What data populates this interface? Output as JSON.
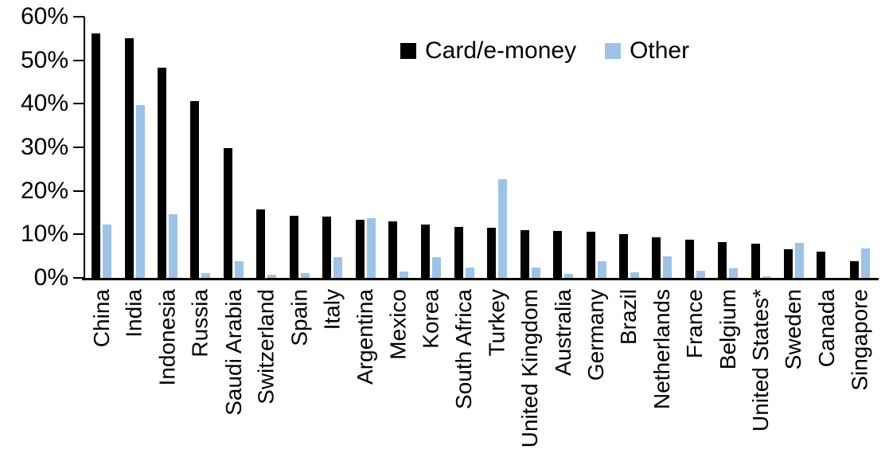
{
  "chart_data": {
    "type": "bar",
    "title": "",
    "xlabel": "",
    "ylabel": "",
    "ylim": [
      0,
      60
    ],
    "yticks": [
      0,
      10,
      20,
      30,
      40,
      50,
      60
    ],
    "ytick_suffix": "%",
    "grid": false,
    "legend_position": "top",
    "categories": [
      "China",
      "India",
      "Indonesia",
      "Russia",
      "Saudi Arabia",
      "Switzerland",
      "Spain",
      "Italy",
      "Argentina",
      "Mexico",
      "Korea",
      "South Africa",
      "Turkey",
      "United Kingdom",
      "Australia",
      "Germany",
      "Brazil",
      "Netherlands",
      "France",
      "Belgium",
      "United States*",
      "Sweden",
      "Canada",
      "Singapore"
    ],
    "series": [
      {
        "name": "Card/e-money",
        "color": "#000000",
        "values": [
          56.2,
          55.0,
          48.3,
          40.6,
          29.8,
          15.7,
          14.2,
          14.1,
          13.4,
          12.9,
          12.2,
          11.8,
          11.6,
          11.0,
          10.8,
          10.6,
          10.0,
          9.4,
          8.7,
          8.3,
          7.9,
          6.6,
          6.0,
          3.9
        ]
      },
      {
        "name": "Other",
        "color": "#9DC3E6",
        "values": [
          12.3,
          39.7,
          14.6,
          1.1,
          3.9,
          0.8,
          1.1,
          4.7,
          13.8,
          1.4,
          4.7,
          2.4,
          22.7,
          2.3,
          1.0,
          3.9,
          1.3,
          4.9,
          1.6,
          2.2,
          0.3,
          8.1,
          0.0,
          6.7
        ]
      }
    ]
  },
  "colors": {
    "card": "#000000",
    "other": "#9DC3E6",
    "axis": "#000000",
    "background": "#FFFFFF"
  }
}
